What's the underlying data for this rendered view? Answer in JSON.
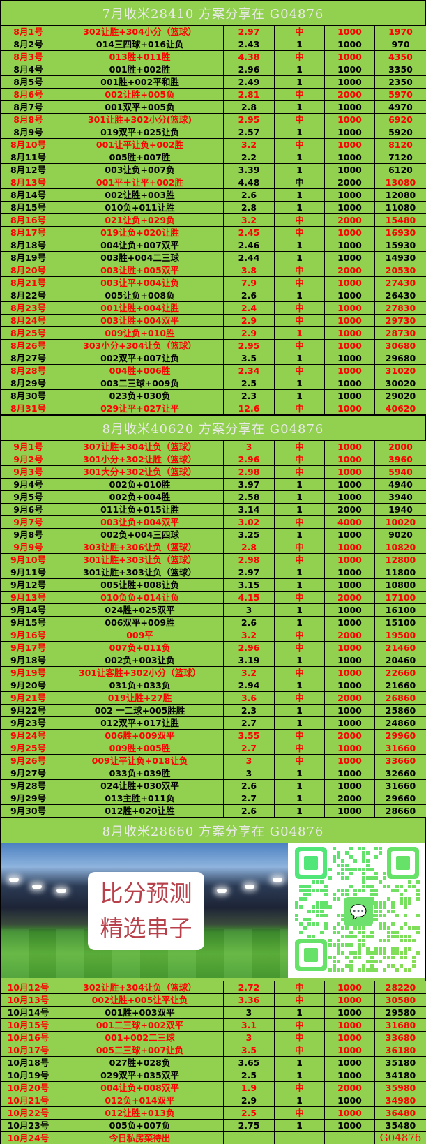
{
  "colors": {
    "background": "#92d050",
    "highlight": "#ff0000",
    "text": "#000000",
    "header_text": "#eaeaea"
  },
  "sections": [
    {
      "title": "7月收米28410 方案分享在 G04876",
      "rows": [
        {
          "c": [
            "8月1号",
            "302让胜+304小分（篮球）",
            "2.97",
            "中",
            "1000",
            "1970"
          ],
          "red": "rrrrrr"
        },
        {
          "c": [
            "8月2号",
            "014三四球+016让负",
            "2.43",
            "1",
            "1000",
            "970"
          ],
          "red": "kkkkkk"
        },
        {
          "c": [
            "8月3号",
            "013胜+011胜",
            "4.38",
            "中",
            "1000",
            "4350"
          ],
          "red": "rrrrrr"
        },
        {
          "c": [
            "8月4号",
            "001胜+002胜",
            "2.96",
            "1",
            "1000",
            "3350"
          ],
          "red": "kkkkkk"
        },
        {
          "c": [
            "8月5号",
            "001胜+002平和胜",
            "2.49",
            "1",
            "1000",
            "2350"
          ],
          "red": "kkkkkk"
        },
        {
          "c": [
            "8月6号",
            "002让胜+005负",
            "2.81",
            "中",
            "2000",
            "5970"
          ],
          "red": "rrrrrr"
        },
        {
          "c": [
            "8月7号",
            "001双平+005负",
            "2.8",
            "1",
            "1000",
            "4970"
          ],
          "red": "kkkkkk"
        },
        {
          "c": [
            "8月8号",
            "301让胜+302小分(篮球)",
            "2.95",
            "中",
            "1000",
            "6920"
          ],
          "red": "rrrrrr"
        },
        {
          "c": [
            "8月9号",
            "019双平+025让负",
            "2.57",
            "1",
            "1000",
            "5920"
          ],
          "red": "kkkkkk"
        },
        {
          "c": [
            "8月10号",
            "001让平让负+002胜",
            "3.2",
            "中",
            "1000",
            "8120"
          ],
          "red": "rrrrrr"
        },
        {
          "c": [
            "8月11号",
            "005胜+007胜",
            "2.2",
            "1",
            "1000",
            "7120"
          ],
          "red": "kkkkkk"
        },
        {
          "c": [
            "8月12号",
            "003让负+007负",
            "3.39",
            "1",
            "1000",
            "6120"
          ],
          "red": "kkkkkk"
        },
        {
          "c": [
            "8月13号",
            "001平＋让平+002胜",
            "4.48",
            "中",
            "2000",
            "13080"
          ],
          "red": "rrkkkr"
        },
        {
          "c": [
            "8月14号",
            "002让胜+003胜",
            "2.6",
            "1",
            "1000",
            "12080"
          ],
          "red": "kkkkkk"
        },
        {
          "c": [
            "8月15号",
            "010负+011让胜",
            "2.8",
            "1",
            "1000",
            "11080"
          ],
          "red": "kkkkkk"
        },
        {
          "c": [
            "8月16号",
            "021让负+029负",
            "3.2",
            "中",
            "2000",
            "15480"
          ],
          "red": "rrrrrr"
        },
        {
          "c": [
            "8月17号",
            "019让负+020让胜",
            "2.45",
            "中",
            "1000",
            "16930"
          ],
          "red": "rrrrrr"
        },
        {
          "c": [
            "8月18号",
            "004让负+007双平",
            "2.46",
            "1",
            "1000",
            "15930"
          ],
          "red": "kkkkkk"
        },
        {
          "c": [
            "8月19号",
            "003胜+004二三球",
            "2.44",
            "1",
            "1000",
            "14930"
          ],
          "red": "kkkkkk"
        },
        {
          "c": [
            "8月20号",
            "003让胜+005双平",
            "3.8",
            "中",
            "2000",
            "20530"
          ],
          "red": "rrrrrr"
        },
        {
          "c": [
            "8月21号",
            "003让平+004让负",
            "7.9",
            "中",
            "1000",
            "27430"
          ],
          "red": "rrrrrr"
        },
        {
          "c": [
            "8月22号",
            "005让负+008负",
            "2.6",
            "1",
            "1000",
            "26430"
          ],
          "red": "kkkkkk"
        },
        {
          "c": [
            "8月23号",
            "001让胜+004让胜",
            "2.4",
            "中",
            "1000",
            "27830"
          ],
          "red": "rrrrrr"
        },
        {
          "c": [
            "8月24号",
            "003让胜+004双平",
            "2.9",
            "中",
            "1000",
            "29730"
          ],
          "red": "rrrrrr"
        },
        {
          "c": [
            "8月25号",
            "009让负+010胜",
            "2.9",
            "1",
            "1000",
            "28730"
          ],
          "red": "rrrrrr"
        },
        {
          "c": [
            "8月26号",
            "303小分+304让负（篮球）",
            "2.95",
            "中",
            "1000",
            "30680"
          ],
          "red": "rrrrrr"
        },
        {
          "c": [
            "8月27号",
            "002双平+007让负",
            "3.5",
            "1",
            "1000",
            "29680"
          ],
          "red": "kkkkkk"
        },
        {
          "c": [
            "8月28号",
            "004胜+006胜",
            "2.34",
            "中",
            "1000",
            "31020"
          ],
          "red": "rrrrrr"
        },
        {
          "c": [
            "8月29号",
            "003二三球+009负",
            "2.5",
            "1",
            "1000",
            "30020"
          ],
          "red": "kkkkkk"
        },
        {
          "c": [
            "8月30号",
            "023负+030负",
            "2.3",
            "1",
            "1000",
            "29020"
          ],
          "red": "kkkkkk"
        },
        {
          "c": [
            "8月31号",
            "029让平+027让平",
            "12.6",
            "中",
            "1000",
            "40620"
          ],
          "red": "rrrrrr"
        }
      ]
    },
    {
      "title": "8月收米40620 方案分享在 G04876",
      "rows": [
        {
          "c": [
            "9月1号",
            "307让胜+304让负（篮球）",
            "3",
            "中",
            "1000",
            "2000"
          ],
          "red": "rrrrrr"
        },
        {
          "c": [
            "9月2号",
            "301小分+302让胜（篮球）",
            "2.96",
            "中",
            "1000",
            "3960"
          ],
          "red": "rrrrrr"
        },
        {
          "c": [
            "9月3号",
            "301大分+302让负（篮球）",
            "2.98",
            "中",
            "1000",
            "5940"
          ],
          "red": "rrrrrr"
        },
        {
          "c": [
            "9月4号",
            "002负+010胜",
            "3.97",
            "1",
            "1000",
            "4940"
          ],
          "red": "kkkkkk"
        },
        {
          "c": [
            "9月5号",
            "002负+004胜",
            "2.58",
            "1",
            "1000",
            "3940"
          ],
          "red": "kkkkkk"
        },
        {
          "c": [
            "9月6号",
            "011让负+015让胜",
            "3.14",
            "1",
            "2000",
            "1940"
          ],
          "red": "kkkkkk"
        },
        {
          "c": [
            "9月7号",
            "003让负+004双平",
            "3.02",
            "中",
            "4000",
            "10020"
          ],
          "red": "rrrrrr"
        },
        {
          "c": [
            "9月8号",
            "002负+004三四球",
            "3.25",
            "1",
            "1000",
            "9020"
          ],
          "red": "kkkkkk"
        },
        {
          "c": [
            "9月9号",
            "303让胜+306让负（篮球）",
            "2.8",
            "中",
            "1000",
            "10820"
          ],
          "red": "rrrrrr"
        },
        {
          "c": [
            "9月10号",
            "301让胜+303让负（篮球）",
            "2.98",
            "中",
            "1000",
            "12800"
          ],
          "red": "rrrrrr"
        },
        {
          "c": [
            "9月11号",
            "301让胜+303让负（篮球）",
            "2.97",
            "1",
            "1000",
            "11800"
          ],
          "red": "kkkkkk"
        },
        {
          "c": [
            "9月12号",
            "005让胜+008让负",
            "3.15",
            "1",
            "1000",
            "10800"
          ],
          "red": "kkkkkk"
        },
        {
          "c": [
            "9月13号",
            "010负负+014让负",
            "4.15",
            "中",
            "2000",
            "17100"
          ],
          "red": "rrrrrr"
        },
        {
          "c": [
            "9月14号",
            "024胜+025双平",
            "3",
            "1",
            "1000",
            "16100"
          ],
          "red": "kkkkkk"
        },
        {
          "c": [
            "9月15号",
            "006双平+009胜",
            "2.6",
            "1",
            "1000",
            "15100"
          ],
          "red": "kkkkkk"
        },
        {
          "c": [
            "9月16号",
            "009平",
            "3.2",
            "中",
            "2000",
            "19500"
          ],
          "red": "rrrrrr"
        },
        {
          "c": [
            "9月17号",
            "007负+011负",
            "2.96",
            "中",
            "1000",
            "21460"
          ],
          "red": "rrrrrr"
        },
        {
          "c": [
            "9月18号",
            "002负+003让负",
            "3.19",
            "1",
            "1000",
            "20460"
          ],
          "red": "kkkkkk"
        },
        {
          "c": [
            "9月19号",
            "301让客胜+302小分（篮球）",
            "3.2",
            "中",
            "1000",
            "22660"
          ],
          "red": "rrrrrr"
        },
        {
          "c": [
            "9月20号",
            "031负+033负",
            "2.94",
            "1",
            "1000",
            "21660"
          ],
          "red": "kkkkkk"
        },
        {
          "c": [
            "9月21号",
            "019让胜+27胜",
            "3.6",
            "中",
            "2000",
            "26860"
          ],
          "red": "rrrrrr"
        },
        {
          "c": [
            "9月22号",
            "002 一二球+005胜胜",
            "2.3",
            "1",
            "1000",
            "25860"
          ],
          "red": "kkkkkk"
        },
        {
          "c": [
            "9月23号",
            "012双平+017让胜",
            "2.7",
            "1",
            "1000",
            "24860"
          ],
          "red": "kkkkkk"
        },
        {
          "c": [
            "9月24号",
            "006胜+009双平",
            "3.55",
            "中",
            "2000",
            "29960"
          ],
          "red": "rrrrrr"
        },
        {
          "c": [
            "9月25号",
            "009胜+005胜",
            "2.7",
            "中",
            "1000",
            "31660"
          ],
          "red": "rrrrrr"
        },
        {
          "c": [
            "9月26号",
            "009让平让负+018让负",
            "3",
            "中",
            "1000",
            "33660"
          ],
          "red": "rrrrrr"
        },
        {
          "c": [
            "9月27号",
            "033负+039胜",
            "3",
            "1",
            "1000",
            "32660"
          ],
          "red": "kkkkkk"
        },
        {
          "c": [
            "9月28号",
            "024让胜+030双平",
            "2.6",
            "1",
            "1000",
            "31660"
          ],
          "red": "kkkkkk"
        },
        {
          "c": [
            "9月29号",
            "013主胜+011负",
            "2.7",
            "1",
            "2000",
            "29660"
          ],
          "red": "kkkkkk"
        },
        {
          "c": [
            "9月30号",
            "012胜+020让胜",
            "2.6",
            "1",
            "1000",
            "28660"
          ],
          "red": "kkkkkk"
        }
      ]
    },
    {
      "title": "8月收米28660 方案分享在 G04876",
      "rows": [
        {
          "c": [
            "10月12号",
            "302让胜+304让负（篮球）",
            "2.72",
            "中",
            "1000",
            "28220"
          ],
          "red": "rrrrrr"
        },
        {
          "c": [
            "10月13号",
            "002让胜+005让平让负",
            "3.36",
            "中",
            "1000",
            "30580"
          ],
          "red": "rrrrrr"
        },
        {
          "c": [
            "10月14号",
            "001胜+003双平",
            "3",
            "1",
            "1000",
            "29580"
          ],
          "red": "kkkkkk"
        },
        {
          "c": [
            "10月15号",
            "001二三球+002双平",
            "3.1",
            "中",
            "1000",
            "31680"
          ],
          "red": "rrrrrr"
        },
        {
          "c": [
            "10月16号",
            "001+002二三球",
            "3",
            "中",
            "1000",
            "33680"
          ],
          "red": "rrrrrr"
        },
        {
          "c": [
            "10月17号",
            "005二三球+007让负",
            "3.5",
            "中",
            "1000",
            "36180"
          ],
          "red": "rrrrrr"
        },
        {
          "c": [
            "10月18号",
            "027胜+028负",
            "3.65",
            "1",
            "1000",
            "35180"
          ],
          "red": "kkkkkk"
        },
        {
          "c": [
            "10月19号",
            "029双平+035双平",
            "2.5",
            "1",
            "1000",
            "34180"
          ],
          "red": "kkkkkk"
        },
        {
          "c": [
            "10月20号",
            "004让负+008双平",
            "1.9",
            "中",
            "2000",
            "35980"
          ],
          "red": "rrrrrr"
        },
        {
          "c": [
            "10月21号",
            "012负+014双平",
            "2.9",
            "1",
            "1000",
            "34980"
          ],
          "red": "rrkkkr"
        },
        {
          "c": [
            "10月22号",
            "012让胜+013负",
            "2.5",
            "中",
            "1000",
            "36480"
          ],
          "red": "rrrrrr"
        },
        {
          "c": [
            "10月23号",
            "005负+007负",
            "2.75",
            "1",
            "1000",
            "35480"
          ],
          "red": "kkkkkk"
        },
        {
          "c": [
            "10月24号",
            "今日私房菜待出",
            "",
            "",
            "",
            "G04876"
          ],
          "red": "rrrrrr"
        }
      ]
    }
  ],
  "banner": {
    "promo_line1": "比分预测",
    "promo_line2": "精选串子",
    "qr_icon": "wechat-qr-code"
  }
}
